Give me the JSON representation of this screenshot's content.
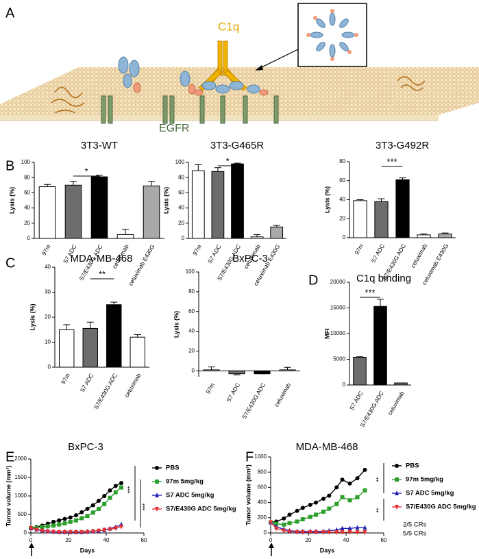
{
  "panels": [
    "A",
    "B",
    "C",
    "D",
    "E",
    "F"
  ],
  "diagram": {
    "c1q": "C1q",
    "egfr": "EGFR"
  },
  "chart_data": [
    {
      "type": "bar",
      "title": "3T3-WT",
      "ylabel": "Lysis (%)",
      "categories": [
        "97m",
        "S7 ADC",
        "S7/E430G ADC",
        "cetuximab",
        "cetuximab E430G"
      ],
      "values": [
        68,
        70,
        81,
        5,
        69
      ],
      "errors": [
        3,
        5,
        2,
        7,
        6
      ],
      "colors": [
        "#ffffff",
        "#6d6d6d",
        "#000000",
        "#ffffff",
        "#a9a9a9"
      ],
      "ylim": [
        0,
        100
      ],
      "yticks": [
        0,
        20,
        40,
        60,
        80,
        100
      ],
      "annotation": "*"
    },
    {
      "type": "bar",
      "title": "3T3-G465R",
      "ylabel": "Lysis (%)",
      "categories": [
        "97m",
        "S7 ADC",
        "S7/E430G ADC",
        "cetuximab",
        "cetuximab E430G"
      ],
      "values": [
        89,
        88,
        98,
        2,
        15
      ],
      "errors": [
        8,
        5,
        1,
        3,
        2
      ],
      "colors": [
        "#ffffff",
        "#6d6d6d",
        "#000000",
        "#ffffff",
        "#a9a9a9"
      ],
      "ylim": [
        0,
        100
      ],
      "yticks": [
        0,
        20,
        40,
        60,
        80,
        100
      ],
      "annotation": "*"
    },
    {
      "type": "bar",
      "title": "3T3-G492R",
      "ylabel": "Lysis (%)",
      "categories": [
        "97m",
        "S7 ADC",
        "S7/E430G ADC",
        "cetuximab",
        "cetuximab E430G"
      ],
      "values": [
        39,
        38,
        61,
        3,
        4
      ],
      "errors": [
        1,
        3,
        2,
        1,
        1
      ],
      "colors": [
        "#ffffff",
        "#6d6d6d",
        "#000000",
        "#ffffff",
        "#a9a9a9"
      ],
      "ylim": [
        0,
        80
      ],
      "yticks": [
        0,
        20,
        40,
        60,
        80
      ],
      "annotation": "***"
    },
    {
      "type": "bar",
      "title": "MDA-MB-468",
      "ylabel": "Lysis (%)",
      "categories": [
        "97m",
        "S7 ADC",
        "S7/E430G ADC",
        "cetuximab"
      ],
      "values": [
        15,
        15.5,
        25,
        12
      ],
      "errors": [
        2,
        2.5,
        1,
        1
      ],
      "colors": [
        "#ffffff",
        "#6d6d6d",
        "#000000",
        "#ffffff"
      ],
      "ylim": [
        0,
        40
      ],
      "yticks": [
        0,
        10,
        20,
        30,
        40
      ],
      "annotation": "**"
    },
    {
      "type": "bar",
      "title": "BxPC-3",
      "ylabel": "Lysis (%)",
      "categories": [
        "97m",
        "S7 ADC",
        "S7/E430G ADC",
        "cetuximab"
      ],
      "values": [
        1,
        -3,
        -3,
        1
      ],
      "errors": [
        3,
        1,
        0,
        2.5
      ],
      "colors": [
        "#ffffff",
        "#6d6d6d",
        "#000000",
        "#ffffff"
      ],
      "ylim": [
        -6,
        100
      ],
      "yticks": [
        0,
        20,
        40,
        60,
        80,
        100
      ]
    },
    {
      "type": "bar",
      "title": "C1q binding",
      "ylabel": "MFI",
      "categories": [
        "S7 ADC",
        "S7/E430G ADC",
        "cetuximab"
      ],
      "values": [
        5400,
        15300,
        400
      ],
      "errors": [
        100,
        1400,
        0
      ],
      "colors": [
        "#6d6d6d",
        "#000000",
        "#6d6d6d"
      ],
      "ylim": [
        0,
        20000
      ],
      "yticks": [
        0,
        5000,
        10000,
        15000,
        20000
      ],
      "annotation": "***"
    },
    {
      "type": "line",
      "title": "BxPC-3",
      "ylabel": "Tumor volume (mm³)",
      "xlabel": "Days",
      "x": [
        0,
        3,
        6,
        9,
        12,
        15,
        18,
        21,
        24,
        27,
        30,
        33,
        36,
        39,
        42,
        45,
        48
      ],
      "series": [
        {
          "name": "PBS",
          "color": "#000000",
          "values": [
            130,
            160,
            200,
            250,
            300,
            340,
            380,
            420,
            480,
            560,
            650,
            750,
            870,
            1000,
            1150,
            1270,
            1350
          ]
        },
        {
          "name": "97m 5mg/kg",
          "color": "#2ca02c",
          "values": [
            130,
            140,
            160,
            180,
            200,
            230,
            260,
            300,
            340,
            400,
            460,
            550,
            650,
            780,
            950,
            1100,
            1230
          ]
        },
        {
          "name": "S7 ADC 5mg/kg",
          "color": "#1f1fb4",
          "values": [
            130,
            100,
            70,
            50,
            40,
            30,
            30,
            30,
            30,
            30,
            40,
            50,
            60,
            80,
            120,
            160,
            230
          ]
        },
        {
          "name": "S7/E430G ADC 5mg/kg",
          "color": "#e8312f",
          "values": [
            130,
            90,
            60,
            40,
            30,
            20,
            20,
            20,
            20,
            20,
            30,
            40,
            60,
            80,
            100,
            130,
            170
          ]
        }
      ],
      "xlim": [
        0,
        60
      ],
      "xticks": [
        0,
        20,
        40,
        60
      ],
      "ylim": [
        0,
        2000
      ],
      "yticks": [
        0,
        500,
        1000,
        1500,
        2000
      ],
      "annotations": [
        "***",
        "***"
      ]
    },
    {
      "type": "line",
      "title": "MDA-MB-468",
      "ylabel": "Tumor volume (mm³)",
      "xlabel": "Days",
      "x": [
        0,
        3,
        7,
        10,
        14,
        17,
        21,
        24,
        28,
        31,
        35,
        38,
        42,
        46,
        50
      ],
      "series": [
        {
          "name": "PBS",
          "color": "#000000",
          "values": [
            140,
            150,
            190,
            240,
            290,
            330,
            370,
            400,
            450,
            490,
            600,
            700,
            650,
            720,
            830
          ]
        },
        {
          "name": "97m 5mg/kg",
          "color": "#2ca02c",
          "values": [
            140,
            120,
            110,
            130,
            150,
            180,
            210,
            240,
            280,
            320,
            380,
            470,
            430,
            470,
            560
          ]
        },
        {
          "name": "S7 ADC 5mg/kg",
          "color": "#1f1fb4",
          "values": [
            140,
            80,
            50,
            30,
            20,
            20,
            20,
            20,
            20,
            30,
            40,
            60,
            60,
            70,
            70
          ]
        },
        {
          "name": "S7/E430G ADC 5mg/kg",
          "color": "#e8312f",
          "values": [
            140,
            60,
            30,
            20,
            10,
            10,
            10,
            10,
            10,
            10,
            10,
            10,
            10,
            10,
            10
          ]
        }
      ],
      "xlim": [
        0,
        60
      ],
      "xticks": [
        0,
        20,
        40,
        60
      ],
      "ylim": [
        0,
        1000
      ],
      "yticks": [
        0,
        200,
        400,
        600,
        800,
        1000
      ],
      "annotations": [
        "**",
        "**",
        "2/5 CRs",
        "5/5 CRs"
      ]
    }
  ]
}
